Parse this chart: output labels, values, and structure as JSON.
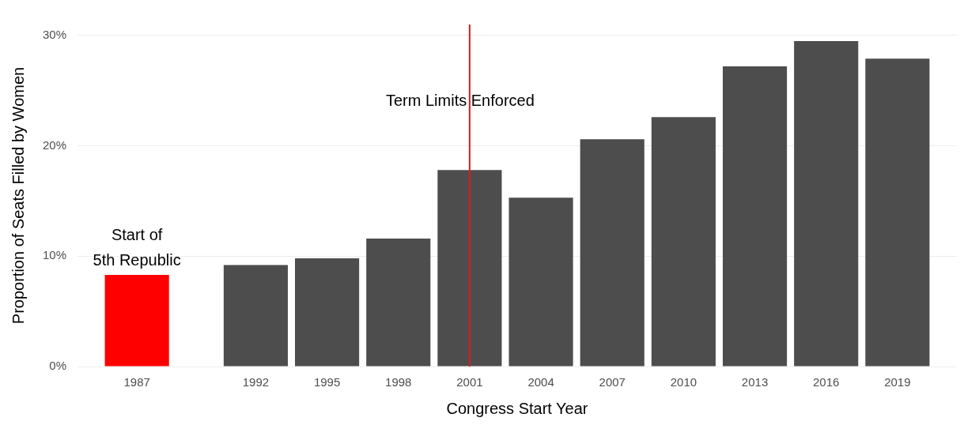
{
  "chart_data": {
    "type": "bar",
    "xlabel": "Congress Start Year",
    "ylabel": "Proportion of Seats Filled by Women",
    "x": [
      1987,
      1992,
      1995,
      1998,
      2001,
      2004,
      2007,
      2010,
      2013,
      2016,
      2019
    ],
    "values": [
      8.3,
      9.2,
      9.8,
      11.6,
      17.8,
      15.3,
      20.6,
      22.6,
      27.2,
      29.5,
      27.9
    ],
    "colors": [
      "#ff0000",
      "#4d4d4d",
      "#4d4d4d",
      "#4d4d4d",
      "#4d4d4d",
      "#4d4d4d",
      "#4d4d4d",
      "#4d4d4d",
      "#4d4d4d",
      "#4d4d4d",
      "#4d4d4d"
    ],
    "xlim": [
      1984.5,
      2021.5
    ],
    "xticks": [
      1987,
      1992,
      1995,
      1998,
      2001,
      2004,
      2007,
      2010,
      2013,
      2016,
      2019
    ],
    "ylim": [
      0,
      31
    ],
    "yticks": [
      {
        "value": 0,
        "label": "0%"
      },
      {
        "value": 10,
        "label": "10%"
      },
      {
        "value": 20,
        "label": "20%"
      },
      {
        "value": 30,
        "label": "30%"
      }
    ],
    "ref_lines": [
      {
        "axis": "x",
        "value": 2001,
        "label": "Term Limits Enforced",
        "color": "#e41a1c"
      }
    ],
    "annotations": [
      {
        "text": "Start of\n5th Republic",
        "x": 1987,
        "y": 8.3
      }
    ],
    "grid": "y",
    "legend": false
  }
}
